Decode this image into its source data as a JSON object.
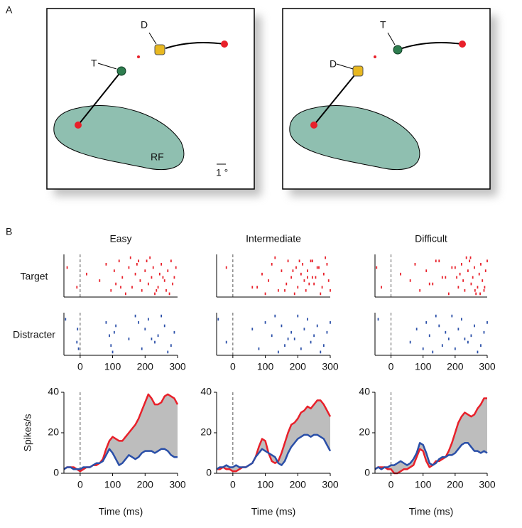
{
  "panel_a": {
    "label": "A",
    "left": {
      "d": "D",
      "t": "T",
      "rf": "RF",
      "scale": "1 °"
    },
    "right": {
      "d": "D",
      "t": "T"
    }
  },
  "panel_b": {
    "label": "B"
  },
  "chart_data": [
    {
      "type": "raster",
      "title": "Easy",
      "ylabel": "Target",
      "color": "#e8202a",
      "xlim": [
        -50,
        300
      ],
      "ylim": [
        0,
        13
      ],
      "vline": 0,
      "x": [
        -40,
        -10,
        20,
        60,
        80,
        95,
        105,
        110,
        120,
        130,
        140,
        150,
        160,
        170,
        175,
        185,
        190,
        200,
        205,
        210,
        220,
        225,
        230,
        240,
        245,
        250,
        260,
        265,
        270,
        280,
        285,
        290,
        295,
        155,
        215,
        235,
        275,
        125,
        180,
        255
      ],
      "y": [
        9,
        3,
        7,
        5,
        10,
        2,
        8,
        4,
        11,
        6,
        1,
        9,
        3,
        7,
        10,
        5,
        2,
        8,
        11,
        4,
        6,
        9,
        1,
        3,
        7,
        10,
        5,
        2,
        8,
        11,
        4,
        6,
        9,
        12,
        12,
        2,
        1,
        3,
        11,
        6
      ]
    },
    {
      "type": "raster",
      "title": "Intermediate",
      "color": "#e8202a",
      "xlim": [
        -50,
        300
      ],
      "ylim": [
        0,
        13
      ],
      "vline": 0,
      "x": [
        -20,
        60,
        90,
        110,
        120,
        140,
        150,
        165,
        170,
        180,
        190,
        195,
        200,
        210,
        215,
        220,
        225,
        230,
        240,
        250,
        255,
        260,
        270,
        275,
        280,
        290,
        295,
        300,
        185,
        205,
        235,
        245,
        265,
        285,
        130,
        160,
        100,
        75,
        245,
        230
      ],
      "y": [
        9,
        3,
        7,
        5,
        10,
        2,
        8,
        4,
        11,
        6,
        1,
        9,
        3,
        7,
        10,
        5,
        2,
        8,
        11,
        4,
        6,
        9,
        1,
        3,
        7,
        10,
        5,
        2,
        8,
        11,
        4,
        6,
        9,
        12,
        12,
        2,
        1,
        3,
        11,
        6
      ]
    },
    {
      "type": "raster",
      "title": "Difficult",
      "color": "#e8202a",
      "xlim": [
        -50,
        300
      ],
      "ylim": [
        0,
        13
      ],
      "vline": 0,
      "x": [
        -45,
        -30,
        30,
        60,
        75,
        90,
        110,
        130,
        150,
        160,
        180,
        200,
        210,
        215,
        220,
        225,
        230,
        240,
        245,
        250,
        255,
        260,
        265,
        270,
        275,
        280,
        285,
        290,
        295,
        300,
        120,
        170,
        190,
        235,
        248,
        262,
        278,
        292,
        140,
        205
      ],
      "y": [
        9,
        3,
        7,
        5,
        10,
        2,
        8,
        4,
        11,
        6,
        1,
        9,
        3,
        7,
        10,
        5,
        2,
        8,
        11,
        4,
        6,
        9,
        1,
        3,
        7,
        10,
        5,
        2,
        8,
        11,
        4,
        6,
        9,
        12,
        12,
        2,
        1,
        3,
        11,
        6
      ]
    },
    {
      "type": "raster",
      "ylabel": "Distracter",
      "color": "#2a4fa8",
      "xlim": [
        -50,
        300
      ],
      "ylim": [
        0,
        13
      ],
      "vline": 0,
      "xticks": [
        0,
        100,
        200,
        300
      ],
      "x": [
        -45,
        -10,
        -8,
        -5,
        80,
        90,
        100,
        110,
        95,
        105,
        150,
        170,
        190,
        200,
        210,
        230,
        240,
        260,
        270,
        280,
        290,
        180,
        220,
        250
      ],
      "y": [
        11,
        4,
        8,
        2,
        10,
        6,
        1,
        9,
        3,
        7,
        5,
        12,
        2,
        8,
        11,
        4,
        6,
        9,
        1,
        3,
        7,
        10,
        5,
        12
      ]
    },
    {
      "type": "raster",
      "color": "#2a4fa8",
      "xlim": [
        -50,
        300
      ],
      "ylim": [
        0,
        13
      ],
      "vline": 0,
      "xticks": [
        0,
        100,
        200,
        300
      ],
      "x": [
        -45,
        -20,
        60,
        80,
        100,
        120,
        140,
        150,
        160,
        180,
        190,
        200,
        210,
        220,
        230,
        240,
        250,
        260,
        270,
        280,
        290,
        300,
        170,
        130
      ],
      "y": [
        11,
        4,
        8,
        2,
        10,
        6,
        1,
        9,
        3,
        7,
        5,
        12,
        2,
        8,
        11,
        4,
        6,
        9,
        1,
        3,
        7,
        10,
        5,
        12
      ]
    },
    {
      "type": "raster",
      "color": "#2a4fa8",
      "xlim": [
        -50,
        300
      ],
      "ylim": [
        0,
        13
      ],
      "vline": 0,
      "xticks": [
        0,
        100,
        200,
        300
      ],
      "x": [
        -40,
        60,
        80,
        100,
        110,
        120,
        130,
        150,
        160,
        170,
        180,
        190,
        200,
        210,
        220,
        240,
        250,
        260,
        270,
        280,
        290,
        300,
        230,
        140
      ],
      "y": [
        11,
        4,
        8,
        2,
        10,
        6,
        1,
        9,
        3,
        7,
        5,
        12,
        2,
        8,
        11,
        4,
        6,
        9,
        1,
        3,
        7,
        10,
        5,
        12
      ]
    },
    {
      "type": "line",
      "ylabel": "Spikes/s",
      "xlabel": "Time (ms)",
      "xlim": [
        -50,
        300
      ],
      "ylim": [
        0,
        40
      ],
      "xticks": [
        0,
        100,
        200,
        300
      ],
      "yticks": [
        0,
        20,
        40
      ],
      "vline": 0,
      "fill_between": "#bdbdbd",
      "x": [
        -50,
        -40,
        -30,
        -20,
        -10,
        0,
        10,
        20,
        30,
        40,
        50,
        60,
        70,
        80,
        90,
        100,
        110,
        120,
        130,
        140,
        150,
        160,
        170,
        180,
        190,
        200,
        210,
        220,
        230,
        240,
        250,
        260,
        270,
        280,
        290,
        300
      ],
      "series": [
        {
          "color": "#e8202a",
          "values": [
            2,
            3,
            3,
            3,
            2,
            1,
            2,
            3,
            3,
            4,
            4,
            5,
            7,
            12,
            16,
            18,
            17,
            16,
            16,
            18,
            20,
            22,
            24,
            27,
            31,
            35,
            39,
            37,
            34,
            34,
            35,
            38,
            39,
            38,
            37,
            34
          ]
        },
        {
          "color": "#2a4fa8",
          "values": [
            2,
            3,
            3,
            2,
            2,
            2,
            3,
            3,
            3,
            4,
            5,
            5,
            6,
            9,
            12,
            10,
            7,
            4,
            5,
            7,
            9,
            8,
            7,
            8,
            10,
            11,
            11,
            11,
            10,
            11,
            12,
            12,
            11,
            9,
            8,
            8
          ]
        }
      ]
    },
    {
      "type": "line",
      "xlabel": "Time (ms)",
      "xlim": [
        -50,
        300
      ],
      "ylim": [
        0,
        40
      ],
      "xticks": [
        0,
        100,
        200,
        300
      ],
      "yticks": [
        0,
        20,
        40
      ],
      "vline": 0,
      "fill_between": "#bdbdbd",
      "x": [
        -50,
        -40,
        -30,
        -20,
        -10,
        0,
        10,
        20,
        30,
        40,
        50,
        60,
        70,
        80,
        90,
        100,
        110,
        120,
        130,
        140,
        150,
        160,
        170,
        180,
        190,
        200,
        210,
        220,
        230,
        240,
        250,
        260,
        270,
        280,
        290,
        300
      ],
      "series": [
        {
          "color": "#e8202a",
          "values": [
            2,
            2,
            3,
            2,
            2,
            1,
            1,
            2,
            3,
            3,
            4,
            5,
            8,
            13,
            17,
            16,
            10,
            6,
            5,
            6,
            10,
            15,
            20,
            24,
            25,
            27,
            30,
            31,
            33,
            32,
            34,
            36,
            36,
            34,
            31,
            28
          ]
        },
        {
          "color": "#2a4fa8",
          "values": [
            2,
            3,
            3,
            4,
            3,
            3,
            4,
            3,
            3,
            3,
            4,
            5,
            8,
            10,
            12,
            11,
            10,
            9,
            8,
            5,
            4,
            6,
            10,
            13,
            15,
            17,
            18,
            19,
            19,
            18,
            19,
            19,
            18,
            17,
            14,
            11
          ]
        }
      ]
    },
    {
      "type": "line",
      "xlabel": "Time (ms)",
      "xlim": [
        -50,
        300
      ],
      "ylim": [
        0,
        40
      ],
      "xticks": [
        0,
        100,
        200,
        300
      ],
      "yticks": [
        0,
        20,
        40
      ],
      "vline": 0,
      "fill_between": "#bdbdbd",
      "x": [
        -50,
        -40,
        -30,
        -20,
        -10,
        0,
        10,
        20,
        30,
        40,
        50,
        60,
        70,
        80,
        90,
        100,
        110,
        120,
        130,
        140,
        150,
        160,
        170,
        180,
        190,
        200,
        210,
        220,
        230,
        240,
        250,
        260,
        270,
        280,
        290,
        300
      ],
      "series": [
        {
          "color": "#e8202a",
          "values": [
            2,
            3,
            3,
            3,
            2,
            2,
            0,
            0,
            1,
            2,
            2,
            3,
            4,
            8,
            12,
            11,
            6,
            3,
            4,
            6,
            6,
            7,
            8,
            11,
            15,
            20,
            25,
            28,
            30,
            29,
            28,
            29,
            32,
            34,
            37,
            37
          ]
        },
        {
          "color": "#2a4fa8",
          "values": [
            2,
            3,
            2,
            3,
            3,
            4,
            4,
            5,
            6,
            5,
            4,
            5,
            7,
            10,
            15,
            14,
            10,
            5,
            4,
            5,
            7,
            8,
            8,
            9,
            9,
            10,
            12,
            14,
            15,
            15,
            13,
            11,
            11,
            10,
            11,
            10
          ]
        }
      ]
    }
  ]
}
